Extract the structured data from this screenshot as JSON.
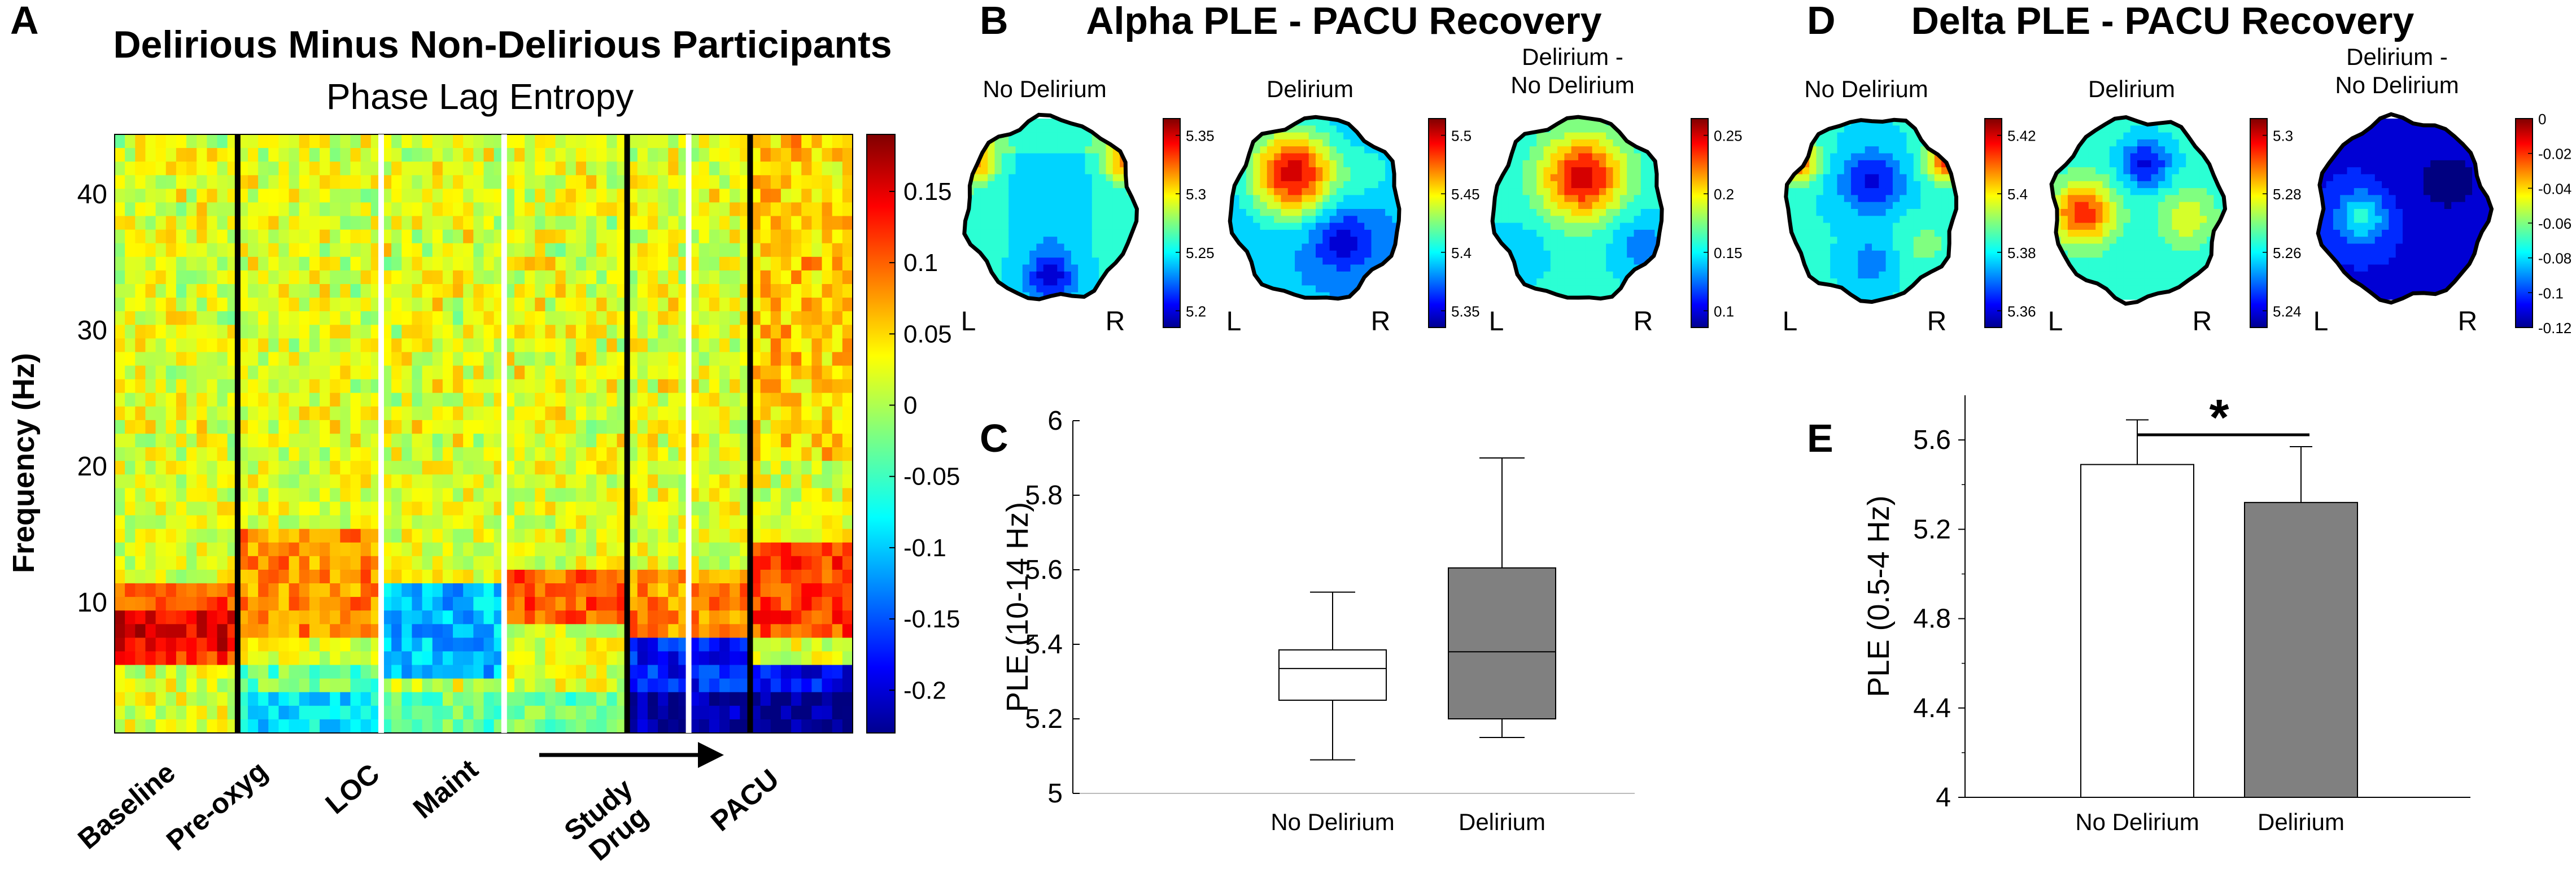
{
  "panels": {
    "A": {
      "label": "A",
      "title": "Delirious Minus Non-Delirious Participants",
      "subtitle": "Phase Lag Entropy",
      "ylabel": "Frequency (Hz)",
      "yticks": [
        "10",
        "20",
        "30",
        "40"
      ],
      "colorbar_ticks": [
        "0.15",
        "0.1",
        "0.05",
        "0",
        "-0.05",
        "-0.1",
        "-0.15",
        "-0.2"
      ],
      "segments": [
        "Baseline",
        "Pre-oxyg",
        "LOC",
        "Maint",
        "Study\nDrug",
        "PACU"
      ]
    },
    "B": {
      "label": "B",
      "title": "Alpha PLE - PACU Recovery",
      "maps": [
        {
          "name": "No Delirium",
          "colorbar_ticks": [
            "5.35",
            "5.3",
            "5.25",
            "5.2"
          ]
        },
        {
          "name": "Delirium",
          "colorbar_ticks": [
            "5.5",
            "5.45",
            "5.4",
            "5.35"
          ]
        },
        {
          "name": "Delirium -\nNo Delirium",
          "colorbar_ticks": [
            "0.25",
            "0.2",
            "0.15",
            "0.1"
          ]
        }
      ]
    },
    "C": {
      "label": "C"
    },
    "D": {
      "label": "D",
      "title": "Delta PLE - PACU Recovery",
      "maps": [
        {
          "name": "No Delirium",
          "colorbar_ticks": [
            "5.42",
            "5.4",
            "5.38",
            "5.36"
          ]
        },
        {
          "name": "Delirium",
          "colorbar_ticks": [
            "5.3",
            "5.28",
            "5.26",
            "5.24"
          ]
        },
        {
          "name": "Delirium -\nNo Delirium",
          "colorbar_ticks": [
            "0",
            "-0.02",
            "-0.04",
            "-0.06",
            "-0.08",
            "-0.1",
            "-0.12"
          ]
        }
      ]
    },
    "E": {
      "label": "E"
    },
    "head_side_left": "L",
    "head_side_right": "R"
  },
  "chart_data": [
    {
      "type": "heatmap",
      "id": "A",
      "title": "Delirious Minus Non-Delirious Participants",
      "subtitle": "Phase Lag Entropy",
      "xlabel": "",
      "ylabel": "Frequency (Hz)",
      "ylim": [
        0.5,
        44.5
      ],
      "clim": [
        -0.23,
        0.19
      ],
      "x_segments": [
        "Baseline",
        "Pre-oxyg",
        "LOC",
        "Maint",
        "Study Drug",
        "PACU"
      ],
      "colorbar_ticks": [
        0.15,
        0.1,
        0.05,
        0,
        -0.05,
        -0.1,
        -0.15,
        -0.2
      ]
    },
    {
      "type": "box",
      "id": "C",
      "ylabel": "PLE (10-14 Hz)",
      "ylim": [
        5.0,
        6.0
      ],
      "yticks": [
        5,
        5.2,
        5.4,
        5.6,
        5.8,
        6
      ],
      "categories": [
        "No Delirium",
        "Delirium"
      ],
      "boxes": [
        {
          "name": "No Delirium",
          "whisker_low": 5.09,
          "q1": 5.25,
          "median": 5.335,
          "q3": 5.385,
          "whisker_high": 5.54,
          "color": "#ffffff"
        },
        {
          "name": "Delirium",
          "whisker_low": 5.15,
          "q1": 5.2,
          "median": 5.38,
          "q3": 5.605,
          "whisker_high": 5.9,
          "color": "#808080"
        }
      ]
    },
    {
      "type": "bar",
      "id": "E",
      "ylabel": "PLE (0.5-4 Hz)",
      "ylim": [
        4.0,
        5.8
      ],
      "yticks": [
        4,
        4.4,
        4.8,
        5.2,
        5.6
      ],
      "categories": [
        "No Delirium",
        "Delirium"
      ],
      "values": [
        5.49,
        5.32
      ],
      "errors": [
        0.2,
        0.25
      ],
      "colors": [
        "#ffffff",
        "#808080"
      ],
      "significance": "*"
    }
  ]
}
